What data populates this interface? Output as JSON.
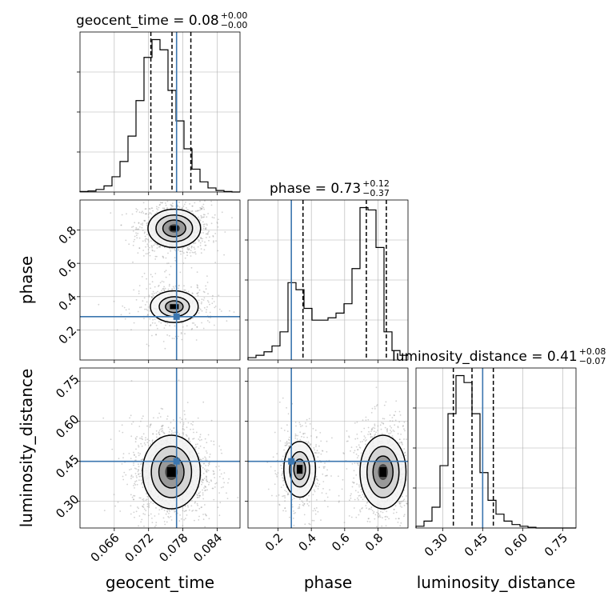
{
  "colors": {
    "truth": "#3b76af",
    "hist": "#000000",
    "grid": "#b0b0b0",
    "scatter": "#9a9a9a"
  },
  "chart_data": {
    "type": "corner",
    "parameters": [
      {
        "name": "geocent_time",
        "range": [
          0.06,
          0.088
        ],
        "ticks": [
          0.066,
          0.072,
          0.078,
          0.084
        ],
        "tick_labels": [
          "0.066",
          "0.072",
          "0.078",
          "0.084"
        ],
        "title_name": "geocent_time = 0.08",
        "title_sup": "+0.00",
        "title_sub": "−0.00",
        "quantiles": [
          0.0724,
          0.0761,
          0.0794
        ],
        "truth": 0.0769
      },
      {
        "name": "phase",
        "range": [
          0.02,
          0.98
        ],
        "ticks": [
          0.2,
          0.4,
          0.6,
          0.8
        ],
        "tick_labels": [
          "0.2",
          "0.4",
          "0.6",
          "0.8"
        ],
        "title_name": "phase = 0.73",
        "title_sup": "+0.12",
        "title_sub": "−0.37",
        "quantiles": [
          0.35,
          0.73,
          0.85
        ],
        "truth": 0.28
      },
      {
        "name": "luminosity_distance",
        "range": [
          0.2,
          0.8
        ],
        "ticks": [
          0.3,
          0.45,
          0.6,
          0.75
        ],
        "tick_labels": [
          "0.30",
          "0.45",
          "0.60",
          "0.75"
        ],
        "title_name": "luminosity_distance = 0.41",
        "title_sup": "+0.08",
        "title_sub": "−0.07",
        "quantiles": [
          0.34,
          0.41,
          0.49
        ],
        "truth": 0.45
      }
    ],
    "histograms": [
      {
        "param": "geocent_time",
        "bin_edges_start": 0.06,
        "bin_width": 0.0014,
        "counts": [
          1,
          2,
          5,
          12,
          30,
          60,
          110,
          180,
          265,
          300,
          280,
          200,
          140,
          85,
          45,
          20,
          8,
          3,
          1,
          0
        ]
      },
      {
        "param": "phase",
        "bin_edges_start": 0.02,
        "bin_width": 0.048,
        "counts": [
          10,
          20,
          35,
          60,
          120,
          330,
          300,
          220,
          170,
          170,
          180,
          200,
          240,
          390,
          650,
          640,
          480,
          120,
          40,
          20
        ]
      },
      {
        "param": "luminosity_distance",
        "bin_edges_start": 0.2,
        "bin_width": 0.03,
        "counts": [
          5,
          20,
          60,
          180,
          330,
          440,
          420,
          330,
          160,
          80,
          40,
          20,
          10,
          5,
          2,
          0,
          0,
          0,
          0,
          0
        ]
      }
    ],
    "panels_2d": [
      {
        "x": "geocent_time",
        "y": "phase",
        "modes": [
          {
            "x": 0.0765,
            "y": 0.81,
            "sx": 0.002,
            "sy": 0.05,
            "weight": 0.7
          },
          {
            "x": 0.0765,
            "y": 0.34,
            "sx": 0.0022,
            "sy": 0.05,
            "weight": 0.3
          }
        ]
      },
      {
        "x": "geocent_time",
        "y": "luminosity_distance",
        "modes": [
          {
            "x": 0.076,
            "y": 0.41,
            "sx": 0.0022,
            "sy": 0.06,
            "weight": 1.0
          }
        ]
      },
      {
        "x": "phase",
        "y": "luminosity_distance",
        "modes": [
          {
            "x": 0.83,
            "y": 0.41,
            "sx": 0.06,
            "sy": 0.06,
            "weight": 0.7
          },
          {
            "x": 0.33,
            "y": 0.42,
            "sx": 0.05,
            "sy": 0.055,
            "weight": 0.3
          }
        ]
      }
    ],
    "grid": true
  }
}
